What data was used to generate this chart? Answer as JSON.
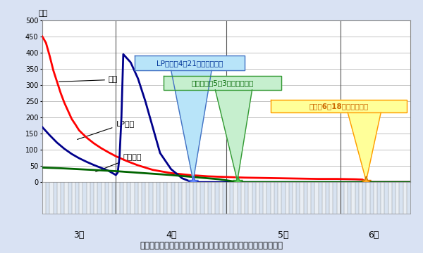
{
  "title": "被災三県における各インフラの供給不能戸数の推移（推計含む）",
  "ylabel": "万戸",
  "ylim": [
    0,
    500
  ],
  "yticks": [
    0,
    50,
    100,
    150,
    200,
    250,
    300,
    350,
    400,
    450,
    500
  ],
  "bg_color": "#d9e2f3",
  "plot_bg": "#ffffff",
  "electricity_color": "#ff0000",
  "lp_gas_color": "#00008b",
  "city_gas_color": "#006400",
  "label_electricity": "電力",
  "label_lp": "LPガス",
  "label_city": "都市ガス",
  "annotation_lp": "LPガス：4月21日に全面復旧",
  "annotation_city": "都市ガス：5月3日に全面復旧",
  "annotation_elec": "電力：6月18日に全面復旧",
  "annotation_lp_fill": "#b8e4f9",
  "annotation_lp_edge": "#4472c4",
  "annotation_city_fill": "#c6efce",
  "annotation_city_edge": "#339933",
  "annotation_elec_fill": "#ffff99",
  "annotation_elec_edge": "#ff9900",
  "annotation_elec_text": "#cc6600",
  "grid_color": "#aaaaaa",
  "sep_color": "#555555"
}
